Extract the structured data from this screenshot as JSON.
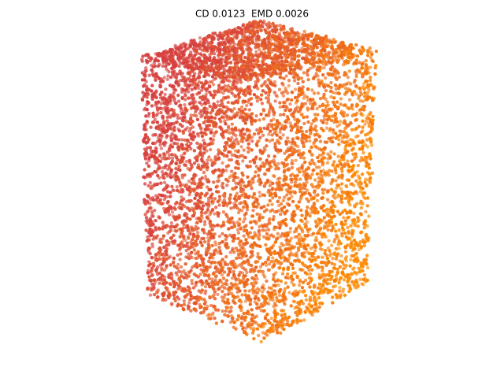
{
  "header": {
    "title": "CD 0.0123  EMD 0.0026"
  }
}
